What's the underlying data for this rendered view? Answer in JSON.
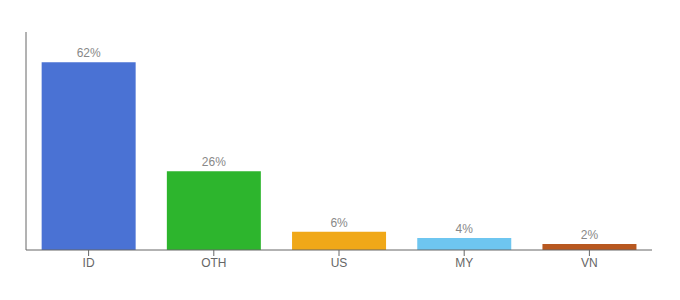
{
  "chart_data": {
    "type": "bar",
    "categories": [
      "ID",
      "OTH",
      "US",
      "MY",
      "VN"
    ],
    "values": [
      62,
      26,
      6,
      4,
      2
    ],
    "value_labels": [
      "62%",
      "26%",
      "6%",
      "4%",
      "2%"
    ],
    "colors": [
      "#4a72d4",
      "#2db52d",
      "#f0a818",
      "#6ec6f0",
      "#b85820"
    ],
    "ylim": [
      0,
      72
    ],
    "data_labels": true,
    "tick_labels": "x",
    "grid": false
  }
}
